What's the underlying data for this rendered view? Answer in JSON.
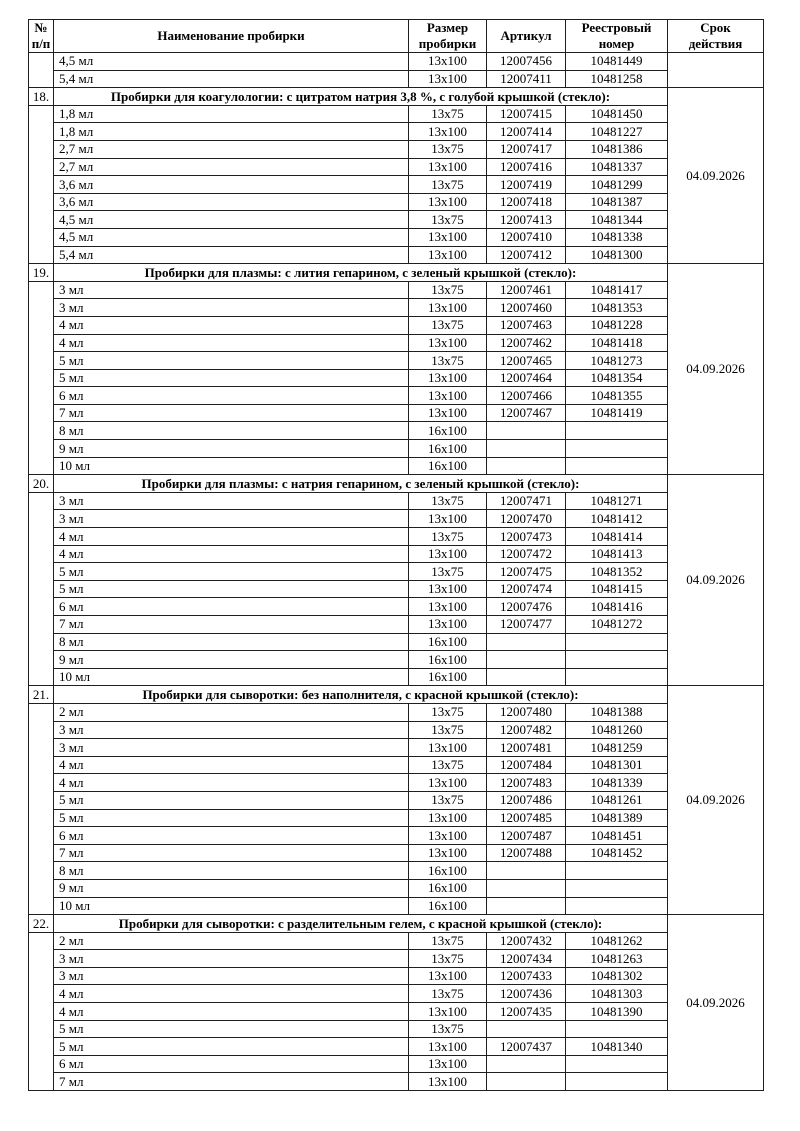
{
  "table": {
    "columns": [
      {
        "key": "num",
        "label": "№\nп/п"
      },
      {
        "key": "name",
        "label": "Наименование пробирки"
      },
      {
        "key": "size",
        "label": "Размер\nпробирки"
      },
      {
        "key": "article",
        "label": "Артикул"
      },
      {
        "key": "registry",
        "label": "Реестровый\nномер"
      },
      {
        "key": "validity",
        "label": "Срок\nдействия"
      }
    ],
    "continuation": {
      "validity": "",
      "rows": [
        [
          "4,5 мл",
          "13x100",
          "12007456",
          "10481449"
        ],
        [
          "5,4 мл",
          "13x100",
          "12007411",
          "10481258"
        ]
      ]
    },
    "sections": [
      {
        "num": "18.",
        "title": "Пробирки для коагулологии: с цитратом натрия 3,8 %, с голубой крышкой (стекло):",
        "validity": "04.09.2026",
        "rows": [
          [
            "1,8 мл",
            "13x75",
            "12007415",
            "10481450"
          ],
          [
            "1,8 мл",
            "13x100",
            "12007414",
            "10481227"
          ],
          [
            "2,7 мл",
            "13x75",
            "12007417",
            "10481386"
          ],
          [
            "2,7 мл",
            "13x100",
            "12007416",
            "10481337"
          ],
          [
            "3,6 мл",
            "13x75",
            "12007419",
            "10481299"
          ],
          [
            "3,6 мл",
            "13x100",
            "12007418",
            "10481387"
          ],
          [
            "4,5 мл",
            "13x75",
            "12007413",
            "10481344"
          ],
          [
            "4,5 мл",
            "13x100",
            "12007410",
            "10481338"
          ],
          [
            "5,4 мл",
            "13x100",
            "12007412",
            "10481300"
          ]
        ]
      },
      {
        "num": "19.",
        "title": "Пробирки для плазмы: с лития гепарином, с зеленый крышкой (стекло):",
        "validity": "04.09.2026",
        "rows": [
          [
            "3 мл",
            "13x75",
            "12007461",
            "10481417"
          ],
          [
            "3 мл",
            "13x100",
            "12007460",
            "10481353"
          ],
          [
            "4 мл",
            "13x75",
            "12007463",
            "10481228"
          ],
          [
            "4 мл",
            "13x100",
            "12007462",
            "10481418"
          ],
          [
            "5 мл",
            "13x75",
            "12007465",
            "10481273"
          ],
          [
            "5 мл",
            "13x100",
            "12007464",
            "10481354"
          ],
          [
            "6 мл",
            "13x100",
            "12007466",
            "10481355"
          ],
          [
            "7 мл",
            "13x100",
            "12007467",
            "10481419"
          ],
          [
            "8 мл",
            "16x100",
            "",
            ""
          ],
          [
            "9 мл",
            "16x100",
            "",
            ""
          ],
          [
            "10 мл",
            "16x100",
            "",
            ""
          ]
        ]
      },
      {
        "num": "20.",
        "title": "Пробирки для плазмы: с натрия гепарином, с зеленый крышкой (стекло):",
        "validity": "04.09.2026",
        "rows": [
          [
            "3 мл",
            "13x75",
            "12007471",
            "10481271"
          ],
          [
            "3 мл",
            "13x100",
            "12007470",
            "10481412"
          ],
          [
            "4 мл",
            "13x75",
            "12007473",
            "10481414"
          ],
          [
            "4 мл",
            "13x100",
            "12007472",
            "10481413"
          ],
          [
            "5 мл",
            "13x75",
            "12007475",
            "10481352"
          ],
          [
            "5 мл",
            "13x100",
            "12007474",
            "10481415"
          ],
          [
            "6 мл",
            "13x100",
            "12007476",
            "10481416"
          ],
          [
            "7 мл",
            "13x100",
            "12007477",
            "10481272"
          ],
          [
            "8 мл",
            "16x100",
            "",
            ""
          ],
          [
            "9 мл",
            "16x100",
            "",
            ""
          ],
          [
            "10 мл",
            "16x100",
            "",
            ""
          ]
        ]
      },
      {
        "num": "21.",
        "title": "Пробирки для сыворотки: без наполнителя, с красной крышкой (стекло):",
        "validity": "04.09.2026",
        "rows": [
          [
            "2 мл",
            "13x75",
            "12007480",
            "10481388"
          ],
          [
            "3 мл",
            "13x75",
            "12007482",
            "10481260"
          ],
          [
            "3 мл",
            "13x100",
            "12007481",
            "10481259"
          ],
          [
            "4 мл",
            "13x75",
            "12007484",
            "10481301"
          ],
          [
            "4 мл",
            "13x100",
            "12007483",
            "10481339"
          ],
          [
            "5 мл",
            "13x75",
            "12007486",
            "10481261"
          ],
          [
            "5 мл",
            "13x100",
            "12007485",
            "10481389"
          ],
          [
            "6 мл",
            "13x100",
            "12007487",
            "10481451"
          ],
          [
            "7 мл",
            "13x100",
            "12007488",
            "10481452"
          ],
          [
            "8 мл",
            "16x100",
            "",
            ""
          ],
          [
            "9 мл",
            "16x100",
            "",
            ""
          ],
          [
            "10 мл",
            "16x100",
            "",
            ""
          ]
        ]
      },
      {
        "num": "22.",
        "title": "Пробирки для сыворотки: с разделительным гелем, с красной крышкой (стекло):",
        "validity": "04.09.2026",
        "rows": [
          [
            "2 мл",
            "13x75",
            "12007432",
            "10481262"
          ],
          [
            "3 мл",
            "13x75",
            "12007434",
            "10481263"
          ],
          [
            "3 мл",
            "13x100",
            "12007433",
            "10481302"
          ],
          [
            "4 мл",
            "13x75",
            "12007436",
            "10481303"
          ],
          [
            "4 мл",
            "13x100",
            "12007435",
            "10481390"
          ],
          [
            "5 мл",
            "13x75",
            "",
            ""
          ],
          [
            "5 мл",
            "13x100",
            "12007437",
            "10481340"
          ],
          [
            "6 мл",
            "13x100",
            "",
            ""
          ],
          [
            "7 мл",
            "13x100",
            "",
            ""
          ]
        ]
      }
    ]
  }
}
